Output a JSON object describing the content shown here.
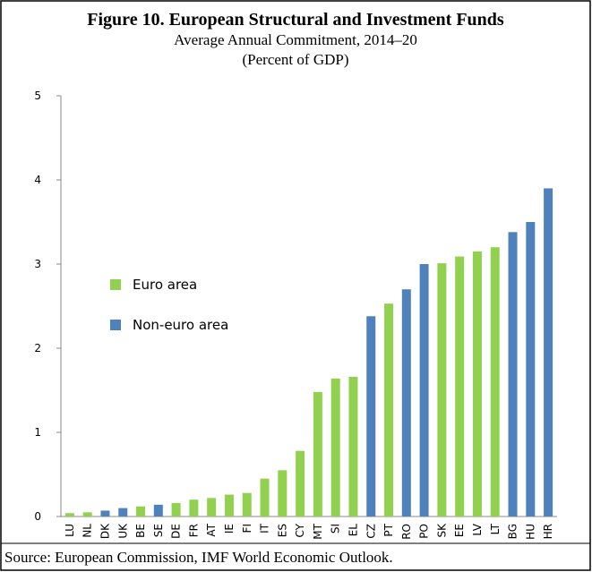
{
  "chart_data": {
    "type": "bar",
    "title": "Figure 10. European Structural and Investment Funds",
    "subtitle": "Average Annual Commitment, 2014–20",
    "units": "(Percent of GDP)",
    "source": "Source: European Commission, IMF World Economic Outlook.",
    "categories": [
      "LU",
      "NL",
      "DK",
      "UK",
      "BE",
      "SE",
      "DE",
      "FR",
      "AT",
      "IE",
      "FI",
      "IT",
      "ES",
      "CY",
      "MT",
      "SI",
      "EL",
      "CZ",
      "PT",
      "RO",
      "PO",
      "SK",
      "EE",
      "LV",
      "LT",
      "BG",
      "HU",
      "HR"
    ],
    "series": [
      {
        "name": "Euro area",
        "color": "#92d050",
        "values": [
          0.04,
          0.05,
          null,
          null,
          0.12,
          null,
          0.16,
          0.2,
          0.22,
          0.26,
          0.28,
          0.45,
          0.55,
          0.78,
          1.48,
          1.64,
          1.66,
          null,
          2.53,
          null,
          null,
          3.01,
          3.09,
          3.15,
          3.2,
          null,
          null,
          null
        ]
      },
      {
        "name": "Non-euro area",
        "color": "#4f81bd",
        "values": [
          null,
          null,
          0.07,
          0.1,
          null,
          0.14,
          null,
          null,
          null,
          null,
          null,
          null,
          null,
          null,
          null,
          null,
          null,
          2.38,
          null,
          2.7,
          3.0,
          null,
          null,
          null,
          null,
          3.38,
          3.5,
          3.9
        ]
      }
    ],
    "ylim": [
      0,
      5
    ],
    "yticks": [
      0,
      1,
      2,
      3,
      4,
      5
    ]
  }
}
